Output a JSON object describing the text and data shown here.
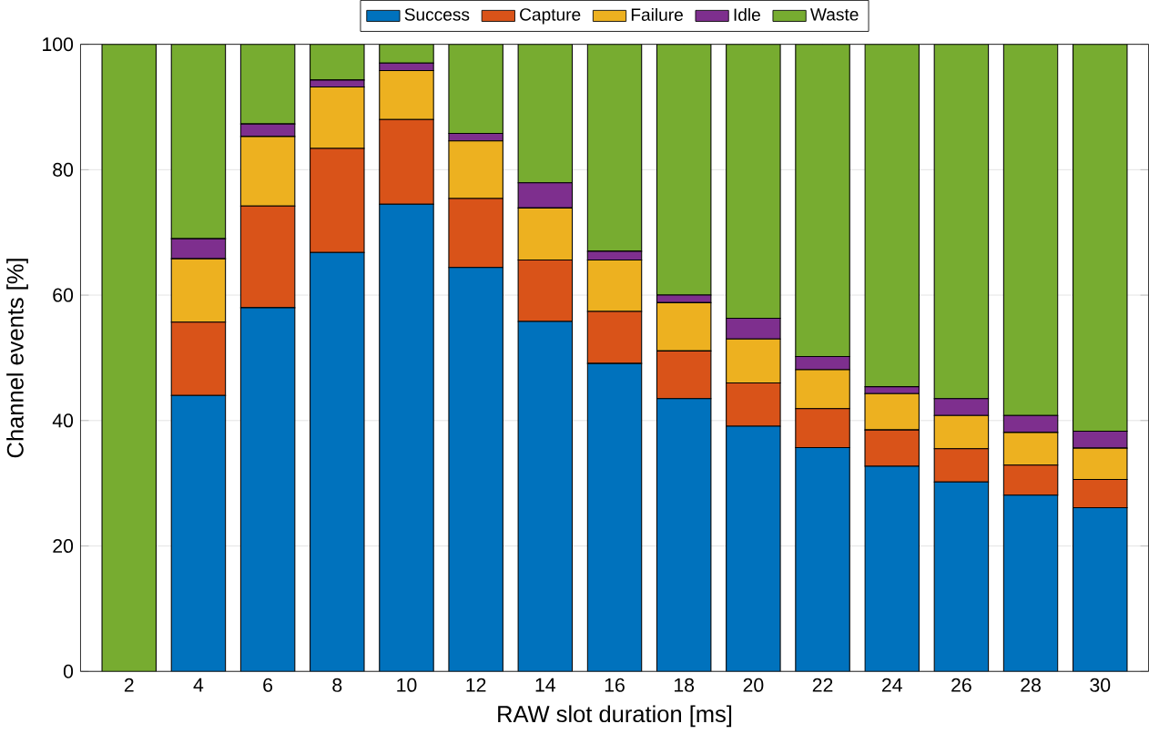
{
  "chart_data": {
    "type": "bar",
    "stacked": true,
    "xlabel": "RAW slot duration [ms]",
    "ylabel": "Channel events [%]",
    "categories": [
      "2",
      "4",
      "6",
      "8",
      "10",
      "12",
      "14",
      "16",
      "18",
      "20",
      "22",
      "24",
      "26",
      "28",
      "30"
    ],
    "series": [
      {
        "name": "Success",
        "color": "#0072bd",
        "values": [
          0,
          44,
          58,
          66.8,
          74.5,
          64.4,
          55.8,
          49.1,
          43.5,
          39.1,
          35.7,
          32.7,
          30.2,
          28.1,
          26.1
        ]
      },
      {
        "name": "Capture",
        "color": "#d95319",
        "values": [
          0,
          11.7,
          16.2,
          16.6,
          13.5,
          11,
          9.8,
          8.3,
          7.6,
          6.9,
          6.2,
          5.8,
          5.3,
          4.8,
          4.5
        ]
      },
      {
        "name": "Failure",
        "color": "#edb120",
        "values": [
          0,
          10.1,
          11.1,
          9.8,
          7.8,
          9.2,
          8.3,
          8.2,
          7.7,
          7,
          6.2,
          5.8,
          5.3,
          5.2,
          5
        ]
      },
      {
        "name": "Idle",
        "color": "#7e2f8e",
        "values": [
          0,
          3.2,
          2,
          1.1,
          1.2,
          1.2,
          4,
          1.4,
          1.2,
          3.3,
          2.1,
          1.1,
          2.7,
          2.7,
          2.7
        ]
      },
      {
        "name": "Waste",
        "color": "#77ac30",
        "values": [
          100,
          31,
          12.7,
          5.7,
          3,
          14.2,
          22.1,
          33,
          40,
          43.7,
          49.8,
          54.6,
          56.5,
          59.2,
          61.7
        ]
      }
    ],
    "ylim": [
      0,
      100
    ],
    "yticks": [
      0,
      20,
      40,
      60,
      80,
      100
    ],
    "grid": "y",
    "legend": "top"
  }
}
